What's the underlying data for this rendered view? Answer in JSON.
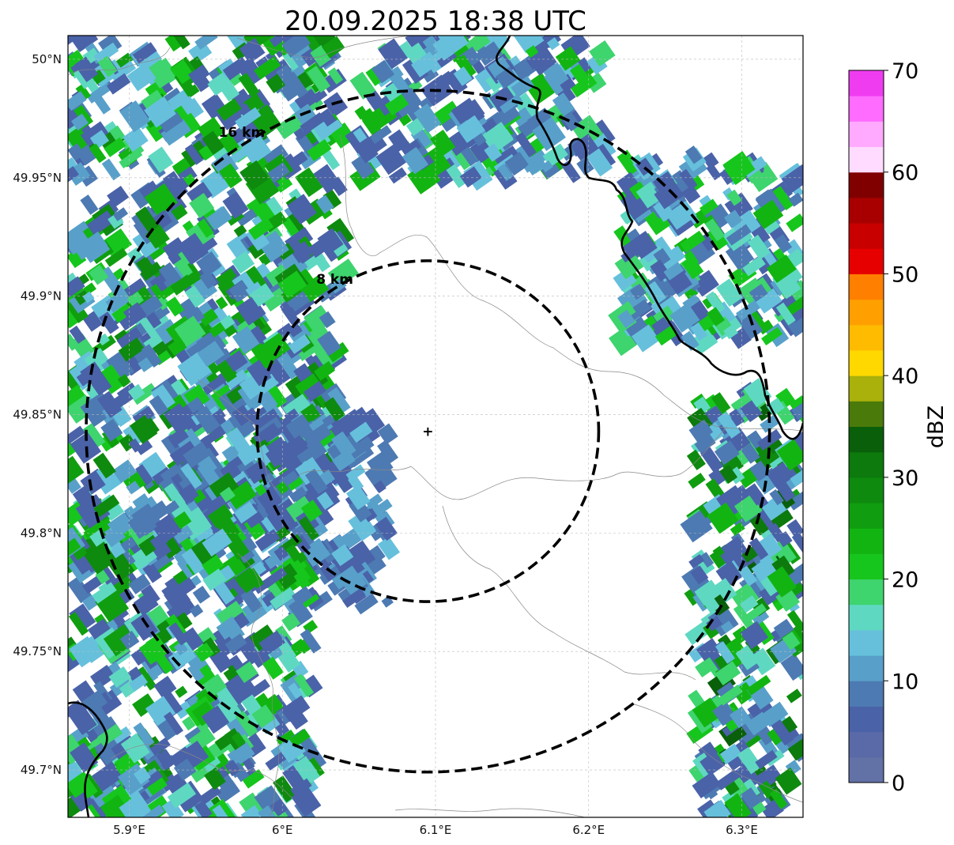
{
  "title": "20.09.2025 18:38 UTC",
  "map": {
    "lon_range": [
      5.86,
      6.34
    ],
    "lat_range": [
      49.68,
      50.01
    ],
    "lon_ticks": [
      {
        "value": 5.9,
        "label": "5.9°E"
      },
      {
        "value": 6.0,
        "label": "6°E"
      },
      {
        "value": 6.1,
        "label": "6.1°E"
      },
      {
        "value": 6.2,
        "label": "6.2°E"
      },
      {
        "value": 6.3,
        "label": "6.3°E"
      }
    ],
    "lat_ticks": [
      {
        "value": 49.7,
        "label": "49.7°N"
      },
      {
        "value": 49.75,
        "label": "49.75°N"
      },
      {
        "value": 49.8,
        "label": "49.8°N"
      },
      {
        "value": 49.85,
        "label": "49.85°N"
      },
      {
        "value": 49.9,
        "label": "49.9°N"
      },
      {
        "value": 49.95,
        "label": "49.95°N"
      },
      {
        "value": 50.0,
        "label": "50°N"
      }
    ],
    "center": {
      "lon": 6.095,
      "lat": 49.843,
      "marker": "+"
    },
    "rings": [
      {
        "radius_km": 8,
        "label": "8 km"
      },
      {
        "radius_km": 16,
        "label": "16 km"
      }
    ],
    "echo_areas": [
      {
        "name": "northwest-band",
        "dbz": [
          5,
          30
        ],
        "lon": [
          5.86,
          6.04
        ],
        "lat": [
          49.82,
          50.01
        ]
      },
      {
        "name": "north-band",
        "dbz": [
          5,
          25
        ],
        "lon": [
          6.05,
          6.21
        ],
        "lat": [
          49.95,
          50.01
        ]
      },
      {
        "name": "northeast-band",
        "dbz": [
          5,
          25
        ],
        "lon": [
          6.22,
          6.34
        ],
        "lat": [
          49.88,
          49.96
        ]
      },
      {
        "name": "west-cells",
        "dbz": [
          5,
          15
        ],
        "lon": [
          5.93,
          6.07
        ],
        "lat": [
          49.77,
          49.85
        ]
      },
      {
        "name": "southwest-band",
        "dbz": [
          5,
          30
        ],
        "lon": [
          5.86,
          6.02
        ],
        "lat": [
          49.68,
          49.82
        ]
      },
      {
        "name": "east-band",
        "dbz": [
          5,
          35
        ],
        "lon": [
          6.27,
          6.34
        ],
        "lat": [
          49.68,
          49.86
        ]
      }
    ]
  },
  "colorbar": {
    "label": "dBZ",
    "min": 0,
    "max": 70,
    "step": 2.5,
    "tick_labels": [
      "0",
      "10",
      "20",
      "30",
      "40",
      "50",
      "60",
      "70"
    ],
    "colors": [
      "#6271a6",
      "#5a6aa8",
      "#4a62a8",
      "#4d7ab2",
      "#58a0ca",
      "#66c0dc",
      "#5fd8c2",
      "#3ed46e",
      "#16c61c",
      "#12b412",
      "#109e10",
      "#0e8a0e",
      "#0c7a0c",
      "#0a5f0a",
      "#4a7a0a",
      "#a9b10a",
      "#ffd800",
      "#ffbb00",
      "#ff9f00",
      "#ff7f00",
      "#e60000",
      "#c80000",
      "#a80000",
      "#800000",
      "#ffdcff",
      "#ffaaff",
      "#ff6cff",
      "#f03cf0"
    ]
  },
  "chart_data": {
    "type": "heatmap",
    "title": "20.09.2025 18:38 UTC",
    "xlabel": "",
    "ylabel": "",
    "xlim": [
      5.86,
      6.34
    ],
    "ylim": [
      49.68,
      50.01
    ],
    "colorbar_label": "dBZ",
    "colorbar_range": [
      0,
      70
    ]
  }
}
